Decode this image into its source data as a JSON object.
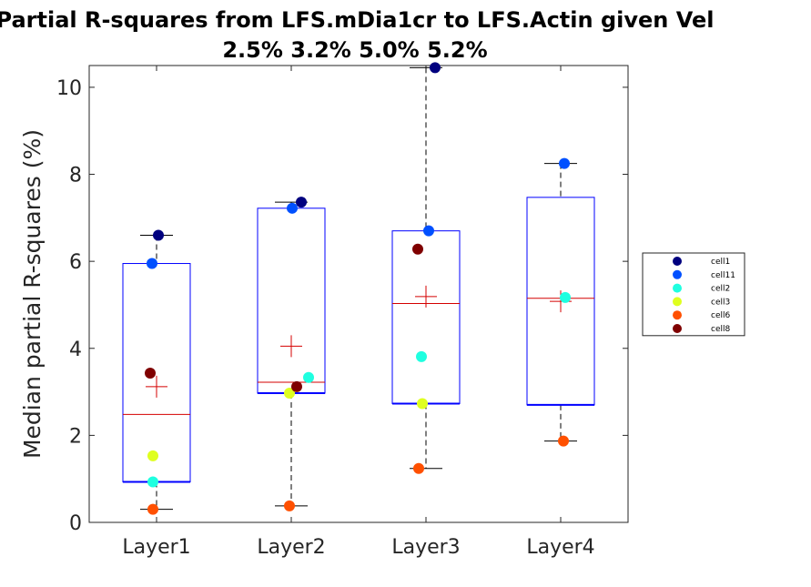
{
  "chart_data": {
    "type": "box",
    "title_line1": "Partial R-squares from LFS.mDia1cr to LFS.Actin given Vel",
    "title_line2": "2.5% 3.2% 5.0% 5.2%",
    "xlabel": "",
    "ylabel": "Median partial R-squares (%)",
    "ylim": [
      0,
      10.5
    ],
    "yticks": [
      "0",
      "2",
      "4",
      "6",
      "8",
      "10"
    ],
    "categories": [
      "Layer1",
      "Layer2",
      "Layer3",
      "Layer4"
    ],
    "boxes": [
      {
        "whisker_low": 0.3,
        "q1": 0.93,
        "median": 2.48,
        "q3": 5.95,
        "whisker_high": 6.6,
        "mean": 3.12
      },
      {
        "whisker_low": 0.38,
        "q1": 2.97,
        "median": 3.22,
        "q3": 7.22,
        "whisker_high": 7.36,
        "mean": 4.05
      },
      {
        "whisker_low": 1.24,
        "q1": 2.73,
        "median": 5.03,
        "q3": 6.7,
        "whisker_high": 10.45,
        "mean": 5.19
      },
      {
        "whisker_low": 1.87,
        "q1": 2.7,
        "median": 5.15,
        "q3": 7.47,
        "whisker_high": 8.25,
        "mean": 5.08
      }
    ],
    "series": [
      {
        "name": "cell1",
        "color": "#00007f",
        "values": [
          6.6,
          7.36,
          10.45,
          null
        ]
      },
      {
        "name": "cell11",
        "color": "#0050ff",
        "values": [
          5.95,
          7.22,
          6.7,
          8.25
        ]
      },
      {
        "name": "cell2",
        "color": "#1fffe0",
        "values": [
          0.93,
          3.33,
          3.81,
          5.17
        ]
      },
      {
        "name": "cell3",
        "color": "#dfff1f",
        "values": [
          1.53,
          2.97,
          2.73,
          null
        ]
      },
      {
        "name": "cell6",
        "color": "#ff5000",
        "values": [
          0.3,
          0.38,
          1.24,
          1.87
        ]
      },
      {
        "name": "cell8",
        "color": "#7f0000",
        "values": [
          3.43,
          3.12,
          6.28,
          null
        ]
      }
    ],
    "colors": {
      "box": "#0000ff",
      "median": "#d40000",
      "mean": "#d40000",
      "whisker": "#000000"
    },
    "legend_position": "right",
    "grid": false
  }
}
